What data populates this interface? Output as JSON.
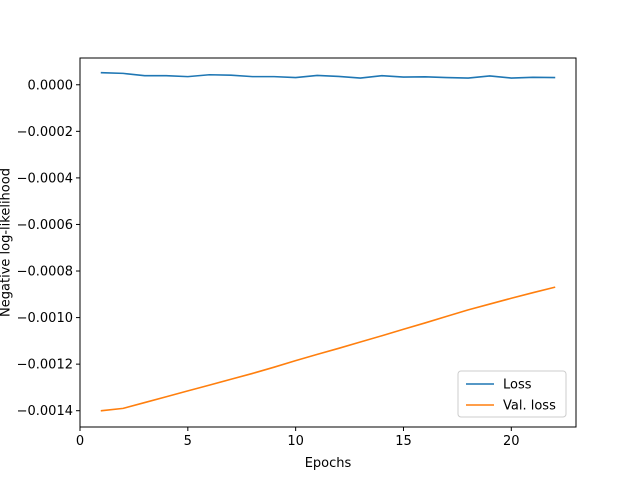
{
  "chart_data": {
    "type": "line",
    "title": "",
    "xlabel": "Epochs",
    "ylabel": "Negative log-likelihood",
    "xlim": [
      0,
      23
    ],
    "ylim": [
      -0.00147,
      0.000115
    ],
    "grid": false,
    "legend_position": "bottom-right",
    "x_ticks": [
      {
        "value": 0,
        "label": "0"
      },
      {
        "value": 5,
        "label": "5"
      },
      {
        "value": 10,
        "label": "10"
      },
      {
        "value": 15,
        "label": "15"
      },
      {
        "value": 20,
        "label": "20"
      }
    ],
    "y_ticks": [
      {
        "value": 0.0,
        "label": "0.0000"
      },
      {
        "value": -0.0002,
        "label": "−0.0002"
      },
      {
        "value": -0.0004,
        "label": "−0.0004"
      },
      {
        "value": -0.0006,
        "label": "−0.0006"
      },
      {
        "value": -0.0008,
        "label": "−0.0008"
      },
      {
        "value": -0.001,
        "label": "−0.0010"
      },
      {
        "value": -0.0012,
        "label": "−0.0012"
      },
      {
        "value": -0.0014,
        "label": "−0.0014"
      }
    ],
    "x": [
      1,
      2,
      3,
      4,
      5,
      6,
      7,
      8,
      9,
      10,
      11,
      12,
      13,
      14,
      15,
      16,
      17,
      18,
      19,
      20,
      21,
      22
    ],
    "series": [
      {
        "name": "Loss",
        "color": "#1f77b4",
        "values": [
          5.2e-05,
          4.9e-05,
          3.9e-05,
          3.9e-05,
          3.5e-05,
          4.3e-05,
          4.1e-05,
          3.5e-05,
          3.5e-05,
          3.1e-05,
          4e-05,
          3.6e-05,
          2.9e-05,
          3.9e-05,
          3.3e-05,
          3.4e-05,
          3.1e-05,
          2.9e-05,
          3.8e-05,
          2.9e-05,
          3.2e-05,
          3.1e-05
        ]
      },
      {
        "name": "Val. loss",
        "color": "#ff7f0e",
        "values": [
          -0.0014,
          -0.00139,
          -0.001365,
          -0.00134,
          -0.001315,
          -0.00129,
          -0.001265,
          -0.00124,
          -0.001213,
          -0.001185,
          -0.001158,
          -0.001132,
          -0.001105,
          -0.001078,
          -0.00105,
          -0.001023,
          -0.000995,
          -0.000967,
          -0.000942,
          -0.000917,
          -0.000893,
          -0.00087
        ]
      }
    ]
  }
}
